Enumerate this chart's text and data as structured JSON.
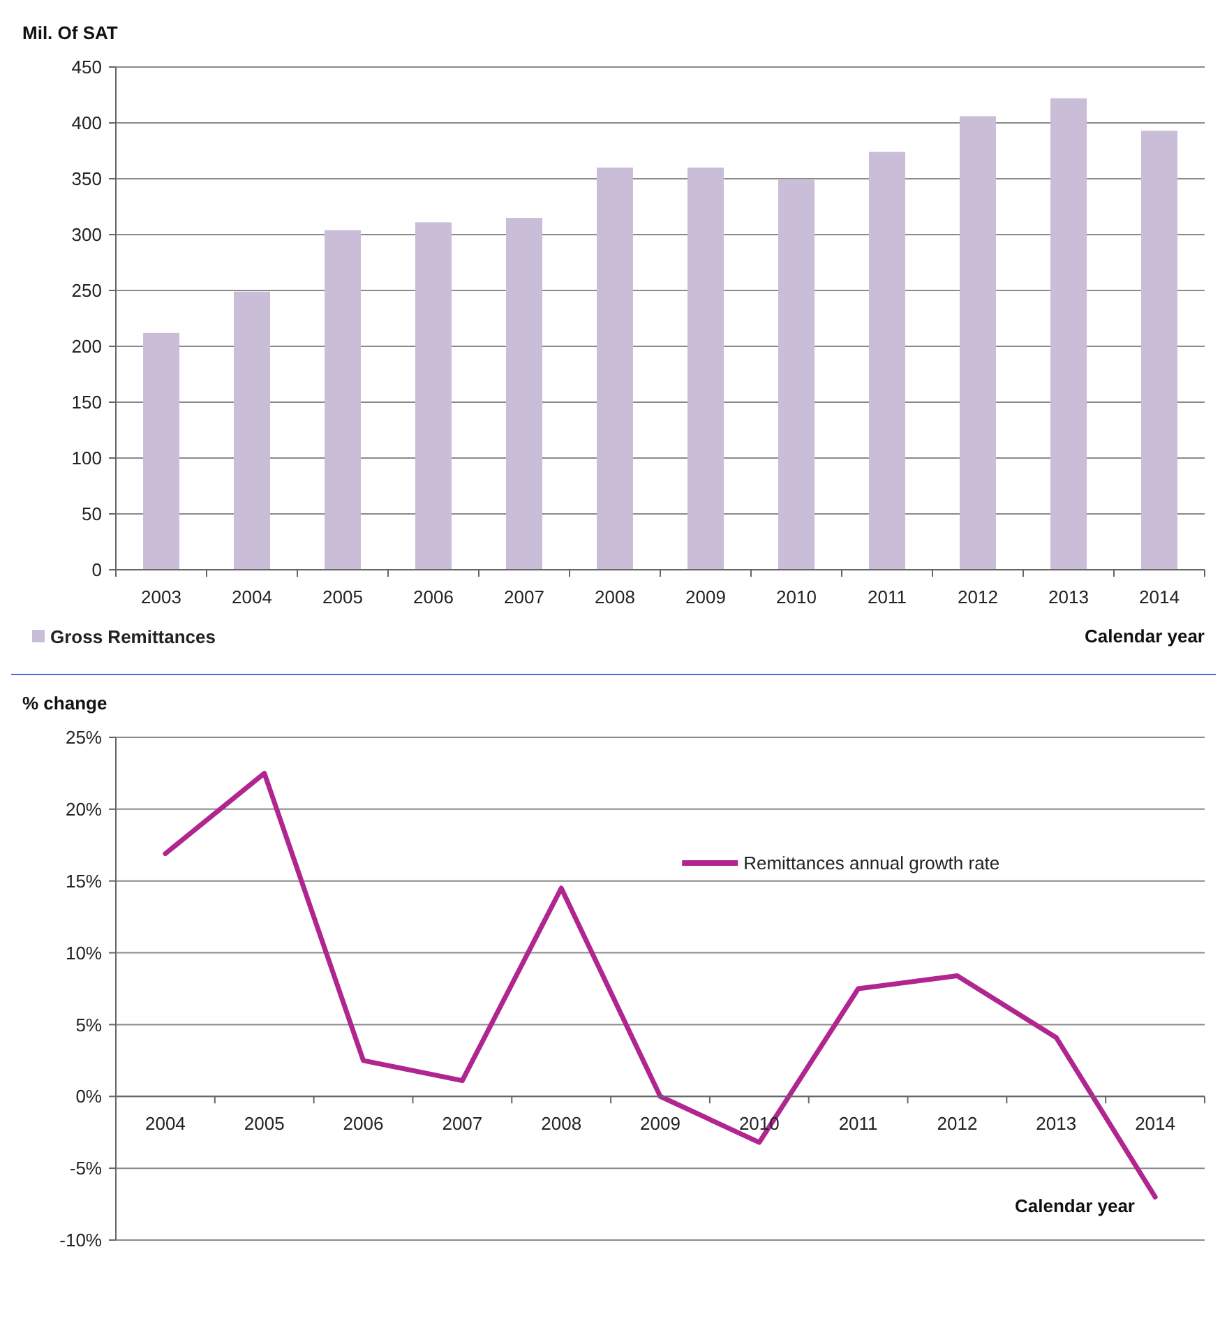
{
  "chart_data": [
    {
      "type": "bar",
      "ylabel": "Mil. Of SAT",
      "xlabel": "Calendar year",
      "categories": [
        "2003",
        "2004",
        "2005",
        "2006",
        "2007",
        "2008",
        "2009",
        "2010",
        "2011",
        "2012",
        "2013",
        "2014"
      ],
      "series": [
        {
          "name": "Gross Remittances",
          "color": "#c9bdd8",
          "values": [
            212,
            249,
            304,
            311,
            315,
            360,
            360,
            349,
            374,
            406,
            422,
            393
          ]
        }
      ],
      "ylim": [
        0,
        450
      ],
      "yticks": [
        0,
        50,
        100,
        150,
        200,
        250,
        300,
        350,
        400,
        450
      ],
      "grid": "y",
      "legend": "bottom left"
    },
    {
      "type": "line",
      "ylabel": "% change",
      "xlabel": "Calendar year",
      "categories": [
        "2004",
        "2005",
        "2006",
        "2007",
        "2008",
        "2009",
        "2010",
        "2011",
        "2012",
        "2013",
        "2014"
      ],
      "series": [
        {
          "name": "Remittances annual growth rate",
          "color": "#b0258f",
          "values": [
            16.9,
            22.5,
            2.5,
            1.1,
            14.5,
            0,
            -3.2,
            7.5,
            8.4,
            4.1,
            -7.0
          ]
        }
      ],
      "ylim": [
        -10,
        25
      ],
      "yticks": [
        {
          "value": -10,
          "label": "-10%"
        },
        {
          "value": -5,
          "label": "-5%"
        },
        {
          "value": 0,
          "label": "0%"
        },
        {
          "value": 5,
          "label": "5%"
        },
        {
          "value": 10,
          "label": "10%"
        },
        {
          "value": 15,
          "label": "15%"
        },
        {
          "value": 20,
          "label": "20%"
        },
        {
          "value": 25,
          "label": "25%"
        }
      ],
      "grid": "y",
      "legend": "top right",
      "marker": "none",
      "line_style": "solid"
    }
  ]
}
